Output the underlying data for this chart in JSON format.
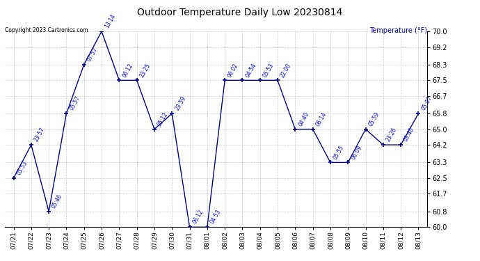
{
  "title": "Outdoor Temperature Daily Low 20230814",
  "ylabel": "Temperature (°F)",
  "copyright": "Copyright 2023 Cartronics.com",
  "dates": [
    "07/21",
    "07/22",
    "07/23",
    "07/24",
    "07/25",
    "07/26",
    "07/27",
    "07/28",
    "07/29",
    "07/30",
    "07/31",
    "08/01",
    "08/02",
    "08/03",
    "08/04",
    "08/05",
    "08/06",
    "08/07",
    "08/08",
    "08/09",
    "08/10",
    "08/11",
    "08/12",
    "08/13"
  ],
  "temps": [
    62.5,
    64.2,
    60.8,
    65.8,
    68.3,
    70.0,
    67.5,
    67.5,
    65.0,
    65.8,
    60.0,
    60.0,
    67.5,
    67.5,
    67.5,
    67.5,
    65.0,
    65.0,
    63.3,
    63.3,
    65.0,
    64.2,
    64.2,
    65.8
  ],
  "times": [
    "05:53",
    "23:57",
    "05:46",
    "05:57",
    "07:57",
    "13:14",
    "06:12",
    "23:25",
    "05:12",
    "23:59",
    "06:12",
    "04:53",
    "06:02",
    "04:54",
    "05:53",
    "22:00",
    "04:40",
    "06:14",
    "05:55",
    "06:09",
    "05:59",
    "23:26",
    "03:40",
    "05:07"
  ],
  "ylim": [
    60.0,
    70.0
  ],
  "yticks": [
    60.0,
    60.8,
    61.7,
    62.5,
    63.3,
    64.2,
    65.0,
    65.8,
    66.7,
    67.5,
    68.3,
    69.2,
    70.0
  ],
  "line_color": "#00008B",
  "marker_color": "#00008B",
  "title_color": "black",
  "ylabel_color": "#0000CC",
  "copyright_color": "black",
  "grid_color": "#BBBBBB",
  "background_color": "white",
  "figwidth": 6.9,
  "figheight": 3.75,
  "dpi": 100
}
